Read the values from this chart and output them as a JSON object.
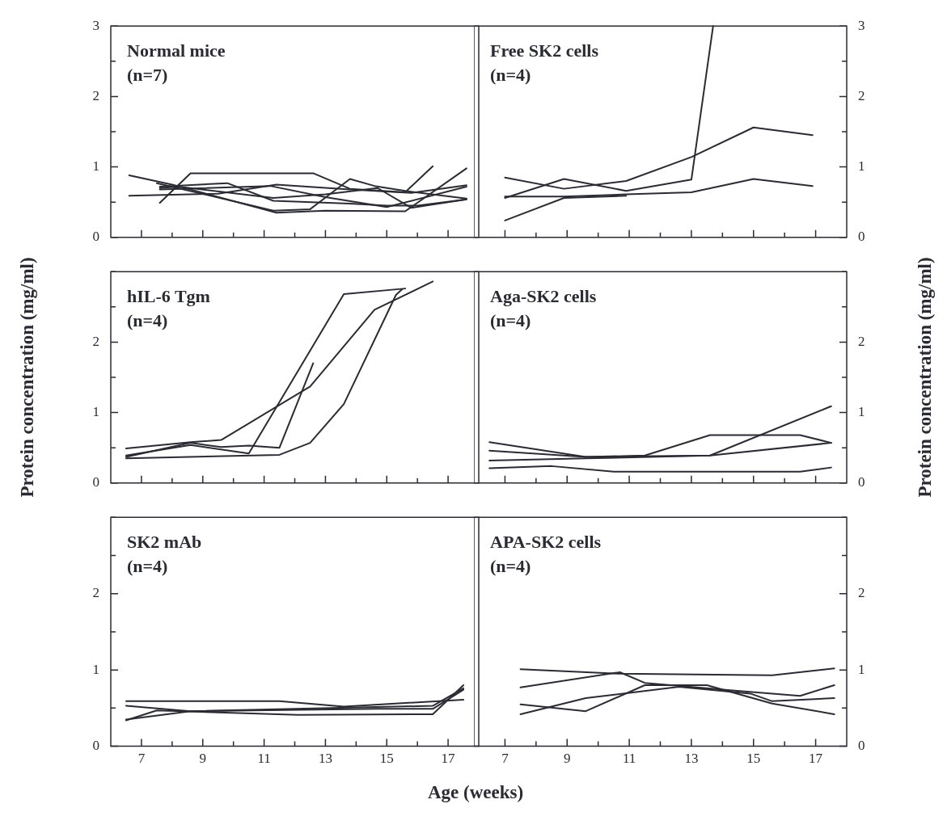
{
  "chart_data": [
    {
      "type": "line",
      "title": "Normal mice",
      "subtitle": "(n=7)",
      "line_style": "solid",
      "tick_labels": "y",
      "xlim": [
        6,
        18
      ],
      "xticks": [
        7,
        {
          "value": 8,
          "label": null
        },
        9,
        {
          "value": 10,
          "label": null
        },
        11,
        {
          "value": 12,
          "label": null
        },
        13,
        {
          "value": 14,
          "label": null
        },
        15,
        {
          "value": 16,
          "label": null
        },
        17
      ],
      "ylim": [
        0,
        3
      ],
      "yticks": [
        0,
        {
          "value": 0.5,
          "label": null
        },
        1,
        {
          "value": 1.5,
          "label": null
        },
        2,
        {
          "value": 2.5,
          "label": null
        },
        3
      ],
      "series": [
        {
          "color": "#2b2b33",
          "x": [
            7.6,
            8.6,
            12.6,
            13.8,
            15.6,
            16.5
          ],
          "values": [
            0.49,
            0.91,
            0.91,
            0.69,
            0.64,
            1.01
          ]
        },
        {
          "color": "#2b2b33",
          "x": [
            6.6,
            9.5,
            11.4,
            13.8,
            15.8,
            17.6
          ],
          "values": [
            0.59,
            0.62,
            0.75,
            0.68,
            0.63,
            0.74
          ]
        },
        {
          "color": "#2b2b33",
          "x": [
            6.6,
            8.0,
            11.4,
            13.0,
            15.6,
            17.6
          ],
          "values": [
            0.88,
            0.75,
            0.35,
            0.38,
            0.37,
            0.98
          ]
        },
        {
          "color": "#2b2b33",
          "x": [
            7.6,
            9.8,
            11.3,
            13.8,
            15.0,
            16.0,
            17.6
          ],
          "values": [
            0.72,
            0.77,
            0.52,
            0.48,
            0.45,
            0.45,
            0.54
          ]
        },
        {
          "color": "#2b2b33",
          "x": [
            7.5,
            11.3,
            12.5,
            13.8,
            14.6,
            15.6,
            17.6
          ],
          "values": [
            0.77,
            0.38,
            0.4,
            0.83,
            0.73,
            0.66,
            0.55
          ]
        },
        {
          "color": "#2b2b33",
          "x": [
            7.6,
            8.2,
            11.3,
            13.0,
            14.7,
            15.8,
            17.6
          ],
          "values": [
            0.7,
            0.72,
            0.56,
            0.61,
            0.7,
            0.42,
            0.54
          ]
        },
        {
          "color": "#2b2b33",
          "x": [
            7.6,
            11.2,
            13.0,
            15.0,
            17.6
          ],
          "values": [
            0.68,
            0.73,
            0.57,
            0.43,
            0.72
          ]
        }
      ]
    },
    {
      "type": "line",
      "title": "Free SK2 cells",
      "subtitle": "(n=4)",
      "line_style": "solid",
      "tick_labels": "y",
      "xlim": [
        6,
        18
      ],
      "xticks": [
        7,
        {
          "value": 8,
          "label": null
        },
        9,
        {
          "value": 10,
          "label": null
        },
        11,
        {
          "value": 12,
          "label": null
        },
        13,
        {
          "value": 14,
          "label": null
        },
        15,
        {
          "value": 16,
          "label": null
        },
        17
      ],
      "ylim": [
        0,
        3
      ],
      "yticks": [
        0,
        {
          "value": 0.5,
          "label": null
        },
        1,
        {
          "value": 1.5,
          "label": null
        },
        2,
        {
          "value": 2.5,
          "label": null
        },
        3
      ],
      "series": [
        {
          "color": "#2b2b33",
          "x": [
            7,
            8.9,
            10.9,
            13,
            15,
            16.9
          ],
          "values": [
            0.85,
            0.69,
            0.8,
            1.14,
            1.56,
            1.45
          ]
        },
        {
          "color": "#2b2b33",
          "x": [
            7,
            8.9,
            10.9,
            13,
            13.7
          ],
          "values": [
            0.56,
            0.83,
            0.66,
            0.82,
            3
          ]
        },
        {
          "color": "#2b2b33",
          "x": [
            7,
            8.9,
            10.9,
            13,
            15,
            16.9
          ],
          "values": [
            0.58,
            0.58,
            0.61,
            0.64,
            0.83,
            0.73
          ]
        },
        {
          "color": "#2b2b33",
          "x": [
            7,
            8.9,
            10.9
          ],
          "values": [
            0.24,
            0.56,
            0.59
          ]
        }
      ]
    },
    {
      "type": "line",
      "title": "hIL-6 Tgm",
      "subtitle": "(n=4)",
      "line_style": "solid",
      "tick_labels": "y",
      "ylabel": "Protein concentration (mg/ml)",
      "xlim": [
        6,
        18
      ],
      "xticks": [
        7,
        {
          "value": 8,
          "label": null
        },
        9,
        {
          "value": 10,
          "label": null
        },
        11,
        {
          "value": 12,
          "label": null
        },
        13,
        {
          "value": 14,
          "label": null
        },
        15,
        {
          "value": 16,
          "label": null
        },
        17
      ],
      "ylim": [
        0,
        3
      ],
      "yticks": [
        0,
        {
          "value": 0.5,
          "label": null
        },
        1,
        {
          "value": 1.5,
          "label": null
        },
        2,
        {
          "value": 2.5,
          "label": null
        },
        {
          "value": 3,
          "label": null
        }
      ],
      "series": [
        {
          "color": "#2b2b33",
          "x": [
            6.5,
            8.6,
            9.6,
            12.5,
            14.6,
            16.5
          ],
          "values": [
            0.49,
            0.58,
            0.61,
            1.37,
            2.46,
            2.86
          ]
        },
        {
          "color": "#2b2b33",
          "x": [
            6.5,
            8.6,
            10.5,
            13.6,
            15.6
          ],
          "values": [
            0.39,
            0.54,
            0.42,
            2.68,
            2.76
          ]
        },
        {
          "color": "#2b2b33",
          "x": [
            6.5,
            8.6,
            9.6,
            10.5,
            11.5,
            12.6
          ],
          "values": [
            0.37,
            0.57,
            0.51,
            0.53,
            0.5,
            1.7
          ]
        },
        {
          "color": "#2b2b33",
          "x": [
            6.5,
            11.5,
            12.5,
            13.6,
            15.3,
            15.5
          ],
          "values": [
            0.35,
            0.4,
            0.57,
            1.12,
            2.67,
            2.75
          ]
        }
      ]
    },
    {
      "type": "line",
      "title": "Aga-SK2 cells",
      "subtitle": "(n=4)",
      "line_style": "solid",
      "tick_labels": "y",
      "ylabel": "Protein concentration (mg/ml)",
      "xlim": [
        6,
        18
      ],
      "xticks": [
        7,
        {
          "value": 8,
          "label": null
        },
        9,
        {
          "value": 10,
          "label": null
        },
        11,
        {
          "value": 12,
          "label": null
        },
        13,
        {
          "value": 14,
          "label": null
        },
        15,
        {
          "value": 16,
          "label": null
        },
        17
      ],
      "ylim": [
        0,
        3
      ],
      "yticks": [
        0,
        {
          "value": 0.5,
          "label": null
        },
        1,
        {
          "value": 1.5,
          "label": null
        },
        2,
        {
          "value": 2.5,
          "label": null
        },
        {
          "value": 3,
          "label": null
        }
      ],
      "series": [
        {
          "color": "#2b2b33",
          "x": [
            6.5,
            9.6,
            11.5,
            13.6,
            16.5,
            17.5
          ],
          "values": [
            0.58,
            0.37,
            0.39,
            0.68,
            0.68,
            0.57
          ]
        },
        {
          "color": "#2b2b33",
          "x": [
            6.5,
            9.6,
            13.6,
            17.5
          ],
          "values": [
            0.46,
            0.37,
            0.39,
            1.09
          ]
        },
        {
          "color": "#2b2b33",
          "x": [
            6.5,
            9.6,
            13.6,
            17.5
          ],
          "values": [
            0.32,
            0.35,
            0.39,
            0.57
          ]
        },
        {
          "color": "#2b2b33",
          "x": [
            6.5,
            8.5,
            10.5,
            16.5,
            17.5
          ],
          "values": [
            0.21,
            0.24,
            0.16,
            0.16,
            0.22
          ]
        }
      ]
    },
    {
      "type": "line",
      "title": "SK2 mAb",
      "subtitle": "(n=4)",
      "line_style": "solid",
      "xlabel": "Age (weeks)",
      "xlim": [
        6,
        18
      ],
      "xticks": [
        7,
        {
          "value": 8,
          "label": null
        },
        9,
        {
          "value": 10,
          "label": null
        },
        11,
        {
          "value": 12,
          "label": null
        },
        13,
        {
          "value": 14,
          "label": null
        },
        15,
        {
          "value": 16,
          "label": null
        },
        17
      ],
      "ylim": [
        0,
        3
      ],
      "yticks": [
        0,
        {
          "value": 0.5,
          "label": null
        },
        1,
        {
          "value": 1.5,
          "label": null
        },
        2,
        {
          "value": 2.5,
          "label": null
        },
        {
          "value": 3,
          "label": null
        }
      ],
      "series": [
        {
          "color": "#2b2b33",
          "x": [
            6.5,
            11.5,
            13.6,
            17.5
          ],
          "values": [
            0.59,
            0.59,
            0.52,
            0.61
          ]
        },
        {
          "color": "#2b2b33",
          "x": [
            6.5,
            8.6,
            16.5,
            17.5
          ],
          "values": [
            0.53,
            0.46,
            0.53,
            0.76
          ]
        },
        {
          "color": "#2b2b33",
          "x": [
            6.5,
            7.5,
            12.1,
            16.5,
            17.5
          ],
          "values": [
            0.34,
            0.47,
            0.41,
            0.42,
            0.8
          ]
        },
        {
          "color": "#2b2b33",
          "x": [
            6.5,
            8.6,
            14.7,
            16.5,
            17.5
          ],
          "values": [
            0.35,
            0.46,
            0.49,
            0.49,
            0.74
          ]
        }
      ]
    },
    {
      "type": "line",
      "title": "APA-SK2 cells",
      "subtitle": "(n=4)",
      "line_style": "solid",
      "xlim": [
        6,
        18
      ],
      "xticks": [
        7,
        {
          "value": 8,
          "label": null
        },
        9,
        {
          "value": 10,
          "label": null
        },
        11,
        {
          "value": 12,
          "label": null
        },
        13,
        {
          "value": 14,
          "label": null
        },
        15,
        {
          "value": 16,
          "label": null
        },
        17
      ],
      "ylim": [
        0,
        3
      ],
      "yticks": [
        0,
        {
          "value": 0.5,
          "label": null
        },
        1,
        {
          "value": 1.5,
          "label": null
        },
        2,
        {
          "value": 2.5,
          "label": null
        },
        {
          "value": 3,
          "label": null
        }
      ],
      "series": [
        {
          "color": "#2b2b33",
          "x": [
            7.5,
            10.7,
            15.6,
            17.6
          ],
          "values": [
            1.01,
            0.95,
            0.93,
            1.02
          ]
        },
        {
          "color": "#2b2b33",
          "x": [
            7.5,
            10.7,
            11.5,
            14.4,
            16.5,
            17.6
          ],
          "values": [
            0.77,
            0.97,
            0.83,
            0.73,
            0.66,
            0.8
          ]
        },
        {
          "color": "#2b2b33",
          "x": [
            7.5,
            9.6,
            11.5,
            13.5,
            15.6,
            17.6
          ],
          "values": [
            0.55,
            0.46,
            0.8,
            0.8,
            0.56,
            0.42
          ]
        },
        {
          "color": "#2b2b33",
          "x": [
            7.5,
            9.6,
            12.6,
            14.9,
            15.6,
            17.6
          ],
          "values": [
            0.42,
            0.63,
            0.78,
            0.69,
            0.59,
            0.63
          ]
        }
      ]
    }
  ]
}
